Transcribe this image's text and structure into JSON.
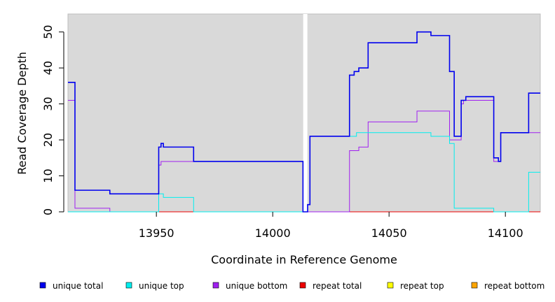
{
  "chart_data": {
    "type": "line",
    "title": "",
    "xlabel": "Coordinate in Reference Genome",
    "ylabel": "Read Coverage Depth",
    "xlim": [
      13912,
      14115
    ],
    "ylim": [
      0,
      55
    ],
    "x_ticks": [
      13950,
      14000,
      14050,
      14100
    ],
    "y_ticks": [
      0,
      10,
      20,
      30,
      40,
      50
    ],
    "background_color": "#d9d9d9",
    "gap_x": 14014,
    "legend_position": "bottom",
    "series": [
      {
        "name": "unique total",
        "color": "#0000ee",
        "step": true,
        "points": [
          [
            13912,
            36
          ],
          [
            13915,
            6
          ],
          [
            13930,
            5
          ],
          [
            13951,
            18
          ],
          [
            13952,
            19
          ],
          [
            13953,
            18
          ],
          [
            13966,
            14
          ],
          [
            14013,
            0
          ],
          [
            14015,
            2
          ],
          [
            14016,
            21
          ],
          [
            14033,
            38
          ],
          [
            14035,
            39
          ],
          [
            14037,
            40
          ],
          [
            14041,
            47
          ],
          [
            14062,
            50
          ],
          [
            14068,
            49
          ],
          [
            14076,
            39
          ],
          [
            14078,
            21
          ],
          [
            14081,
            31
          ],
          [
            14083,
            32
          ],
          [
            14095,
            15
          ],
          [
            14097,
            14
          ],
          [
            14098,
            22
          ],
          [
            14110,
            33
          ],
          [
            14115,
            33
          ]
        ]
      },
      {
        "name": "unique top",
        "color": "#00eeee",
        "step": true,
        "points": [
          [
            13912,
            0
          ],
          [
            13951,
            5
          ],
          [
            13953,
            4
          ],
          [
            13966,
            0
          ],
          [
            14015,
            2
          ],
          [
            14016,
            21
          ],
          [
            14036,
            22
          ],
          [
            14068,
            21
          ],
          [
            14076,
            19
          ],
          [
            14078,
            1
          ],
          [
            14095,
            0
          ],
          [
            14110,
            11
          ],
          [
            14115,
            11
          ]
        ]
      },
      {
        "name": "unique bottom",
        "color": "#a020f0",
        "step": true,
        "points": [
          [
            13912,
            31
          ],
          [
            13915,
            1
          ],
          [
            13930,
            0
          ],
          [
            13951,
            13
          ],
          [
            13952,
            14
          ],
          [
            13966,
            14
          ],
          [
            14013,
            0
          ],
          [
            14033,
            17
          ],
          [
            14037,
            18
          ],
          [
            14041,
            25
          ],
          [
            14062,
            28
          ],
          [
            14076,
            20
          ],
          [
            14081,
            30
          ],
          [
            14082,
            31
          ],
          [
            14095,
            14
          ],
          [
            14098,
            22
          ],
          [
            14115,
            22
          ]
        ]
      },
      {
        "name": "repeat total",
        "color": "#ee0000",
        "step": true,
        "points": [
          [
            13912,
            0
          ],
          [
            14115,
            0
          ]
        ]
      },
      {
        "name": "repeat top",
        "color": "#ffff00",
        "step": true,
        "points": [
          [
            13912,
            0
          ],
          [
            14115,
            0
          ]
        ]
      },
      {
        "name": "repeat bottom",
        "color": "#ffa500",
        "step": true,
        "points": [
          [
            13912,
            0
          ],
          [
            14115,
            0
          ]
        ]
      }
    ]
  }
}
